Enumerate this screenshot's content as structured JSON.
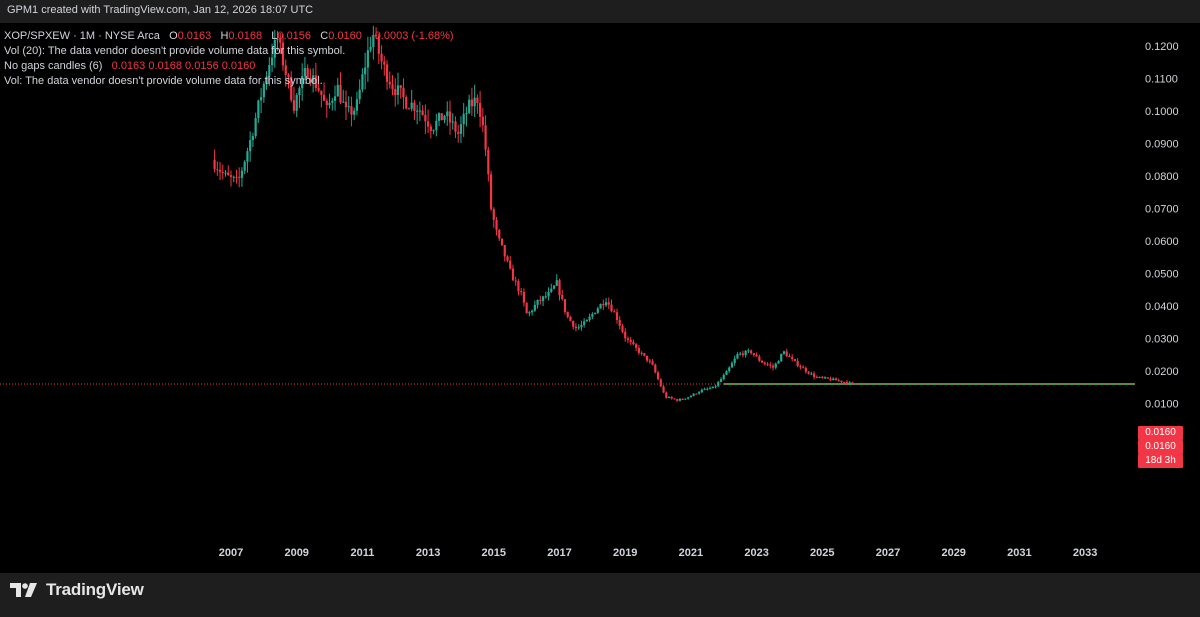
{
  "caption": "GPM1 created with TradingView.com, Jan 12, 2026 18:07 UTC",
  "legend": {
    "symbol": "XOP/SPXEW · 1M · NYSE Arca",
    "o_label": "O",
    "o_val": "0.0163",
    "h_label": "H",
    "h_val": "0.0168",
    "l_label": "L",
    "l_val": "0.0156",
    "c_label": "C",
    "c_val": "0.0160",
    "chg": "-0.0003 (-1.68%)",
    "vol20": "Vol (20): The data vendor doesn't provide volume data for this symbol.",
    "gaps_label": "No gaps candles (6)",
    "gaps_vals": "0.0163  0.0168  0.0156  0.0160",
    "vol": "Vol: The data vendor doesn't provide volume data for this symbol."
  },
  "price_tags": {
    "tag1": "0.0160",
    "tag2": "0.0160",
    "tag3": "18d 3h"
  },
  "brand": "TradingView",
  "colors": {
    "up": "#22ab94",
    "down": "#f23645",
    "background": "#000000",
    "frame": "#1e1e1e",
    "hline": "#3d9a3d"
  },
  "chart_data": {
    "type": "candlestick",
    "title": "XOP/SPXEW · 1M · NYSE Arca",
    "x_ticks": [
      "2007",
      "2009",
      "2011",
      "2013",
      "2015",
      "2017",
      "2019",
      "2021",
      "2023",
      "2025",
      "2027",
      "2029",
      "2031",
      "2033"
    ],
    "y_ticks": [
      "0.1200",
      "0.1100",
      "0.1000",
      "0.0900",
      "0.0800",
      "0.0700",
      "0.0600",
      "0.0500",
      "0.0400",
      "0.0300",
      "0.0200",
      "0.0100",
      "0.0000"
    ],
    "ylim": [
      -0.006,
      0.127
    ],
    "xlim": [
      2006.0,
      2034.5
    ],
    "last_close": 0.016,
    "price_line": {
      "value": 0.016,
      "style": "dotted"
    },
    "horizontal_line": {
      "value": 0.016,
      "from": 2022.0,
      "to": 2034.5
    },
    "series": [
      {
        "name": "XOP/SPXEW",
        "keypoints": [
          [
            2006.5,
            0.085
          ],
          [
            2006.9,
            0.08
          ],
          [
            2007.3,
            0.078
          ],
          [
            2007.7,
            0.092
          ],
          [
            2008.0,
            0.105
          ],
          [
            2008.3,
            0.117
          ],
          [
            2008.5,
            0.122
          ],
          [
            2008.8,
            0.11
          ],
          [
            2009.0,
            0.102
          ],
          [
            2009.4,
            0.113
          ],
          [
            2009.8,
            0.106
          ],
          [
            2010.0,
            0.1
          ],
          [
            2010.3,
            0.108
          ],
          [
            2010.6,
            0.099
          ],
          [
            2010.9,
            0.101
          ],
          [
            2011.2,
            0.116
          ],
          [
            2011.4,
            0.124
          ],
          [
            2011.7,
            0.114
          ],
          [
            2012.0,
            0.108
          ],
          [
            2012.4,
            0.103
          ],
          [
            2012.8,
            0.101
          ],
          [
            2013.2,
            0.095
          ],
          [
            2013.6,
            0.099
          ],
          [
            2014.0,
            0.093
          ],
          [
            2014.3,
            0.101
          ],
          [
            2014.6,
            0.104
          ],
          [
            2014.8,
            0.092
          ],
          [
            2015.0,
            0.07
          ],
          [
            2015.2,
            0.061
          ],
          [
            2015.4,
            0.056
          ],
          [
            2015.6,
            0.05
          ],
          [
            2015.9,
            0.044
          ],
          [
            2016.1,
            0.037
          ],
          [
            2016.4,
            0.041
          ],
          [
            2016.8,
            0.044
          ],
          [
            2017.0,
            0.047
          ],
          [
            2017.3,
            0.037
          ],
          [
            2017.6,
            0.033
          ],
          [
            2017.9,
            0.035
          ],
          [
            2018.2,
            0.039
          ],
          [
            2018.5,
            0.042
          ],
          [
            2018.8,
            0.037
          ],
          [
            2019.1,
            0.03
          ],
          [
            2019.5,
            0.026
          ],
          [
            2019.9,
            0.022
          ],
          [
            2020.3,
            0.012
          ],
          [
            2020.7,
            0.011
          ],
          [
            2021.0,
            0.012
          ],
          [
            2021.4,
            0.014
          ],
          [
            2021.8,
            0.015
          ],
          [
            2022.2,
            0.02
          ],
          [
            2022.5,
            0.025
          ],
          [
            2022.9,
            0.026
          ],
          [
            2023.2,
            0.023
          ],
          [
            2023.6,
            0.021
          ],
          [
            2023.9,
            0.026
          ],
          [
            2024.2,
            0.023
          ],
          [
            2024.6,
            0.02
          ],
          [
            2024.9,
            0.018
          ],
          [
            2025.3,
            0.0175
          ],
          [
            2025.7,
            0.0168
          ],
          [
            2026.0,
            0.016
          ]
        ]
      }
    ]
  }
}
